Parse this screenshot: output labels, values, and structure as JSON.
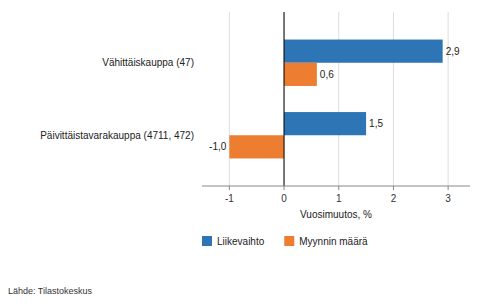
{
  "chart_data": {
    "type": "bar",
    "orientation": "horizontal",
    "categories": [
      "Päivittäistavarakauppa (4711, 472)",
      "Vähittäiskauppa (47)"
    ],
    "series": [
      {
        "name": "Liikevaihto",
        "color": "#2E75B6",
        "values": [
          1.5,
          2.9
        ],
        "value_labels": [
          "1,5",
          "2,9"
        ]
      },
      {
        "name": "Myynnin määrä",
        "color": "#ED7D31",
        "values": [
          -1.0,
          0.6
        ],
        "value_labels": [
          "-1,0",
          "0,6"
        ]
      }
    ],
    "xlabel": "Vuosimuutos, %",
    "xlim": [
      -1.5,
      3.4
    ],
    "xticks": [
      -1,
      0,
      1,
      2,
      3
    ],
    "grid": true,
    "legend": "bottom",
    "data_labels": true,
    "source": "Lähde: Tilastokeskus"
  }
}
